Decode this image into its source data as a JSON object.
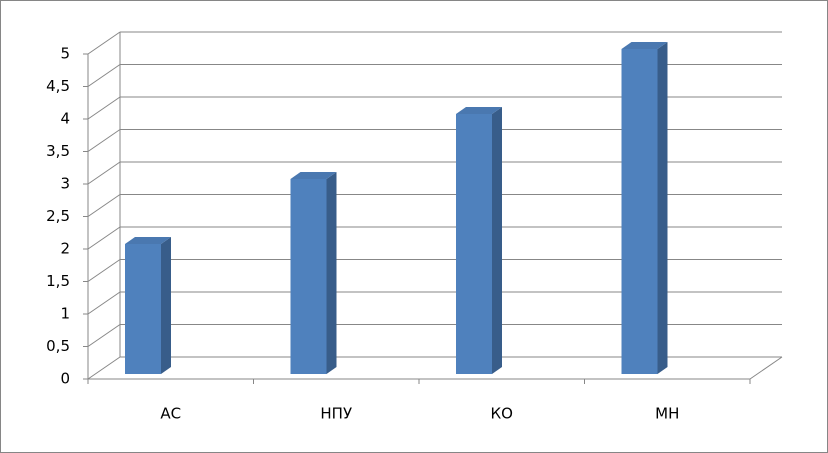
{
  "chart_data": {
    "type": "bar3d",
    "categories": [
      "АС",
      "НПУ",
      "КО",
      "МН"
    ],
    "values": [
      2,
      3,
      4,
      5
    ],
    "color": "#4f81bd",
    "ylim": [
      0,
      5
    ],
    "yticks": [
      0,
      {
        "value": 0.5,
        "label": "0,5"
      },
      1,
      {
        "value": 1.5,
        "label": "1,5"
      },
      2,
      {
        "value": 2.5,
        "label": "2,5"
      },
      3,
      {
        "value": 3.5,
        "label": "3,5"
      },
      4,
      {
        "value": 4.5,
        "label": "4,5"
      },
      5
    ],
    "grid": true
  }
}
